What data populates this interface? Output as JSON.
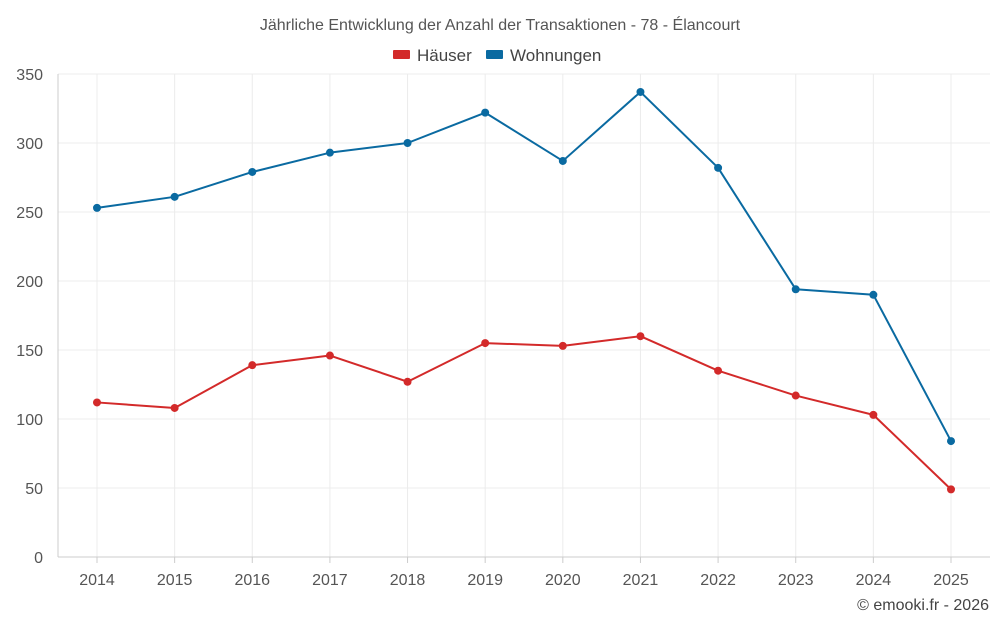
{
  "chart_data": {
    "type": "line",
    "title": "Jährliche Entwicklung der Anzahl der Transaktionen - 78 - Élancourt",
    "categories": [
      "2014",
      "2015",
      "2016",
      "2017",
      "2018",
      "2019",
      "2020",
      "2021",
      "2022",
      "2023",
      "2024",
      "2025"
    ],
    "series": [
      {
        "name": "Häuser",
        "color": "#d32a2a",
        "values": [
          112,
          108,
          139,
          146,
          127,
          155,
          153,
          160,
          135,
          117,
          103,
          49
        ]
      },
      {
        "name": "Wohnungen",
        "color": "#0a6aa1",
        "values": [
          253,
          261,
          279,
          293,
          300,
          322,
          287,
          337,
          282,
          194,
          190,
          84
        ]
      }
    ],
    "ylim": [
      0,
      350
    ],
    "yticks": [
      0,
      50,
      100,
      150,
      200,
      250,
      300,
      350
    ],
    "ytick_labels": [
      "0",
      "50",
      "100",
      "150",
      "200",
      "250",
      "300",
      "350"
    ],
    "xlabel": "",
    "ylabel": "",
    "grid": true,
    "legend_position": "top-center"
  },
  "credit": "© emooki.fr - 2026"
}
